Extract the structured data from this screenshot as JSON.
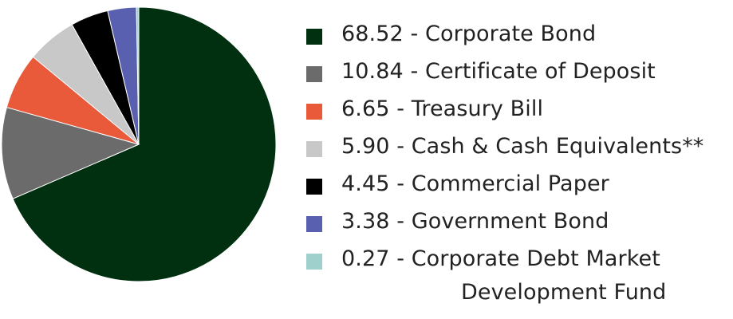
{
  "chart_data": {
    "type": "pie",
    "title": "",
    "legend_position": "right",
    "slices": [
      {
        "label": "68.52 - Corporate Bond",
        "value": 68.52,
        "color": "#003010"
      },
      {
        "label": "10.84 - Certificate of Deposit",
        "value": 10.84,
        "color": "#6b6b6b"
      },
      {
        "label": "6.65 - Treasury Bill",
        "value": 6.65,
        "color": "#e85a3a"
      },
      {
        "label": "5.90 - Cash & Cash Equivalents**",
        "value": 5.9,
        "color": "#c8c8c8"
      },
      {
        "label": "4.45 - Commercial Paper",
        "value": 4.45,
        "color": "#000000"
      },
      {
        "label": "3.38 - Government Bond",
        "value": 3.38,
        "color": "#5960b0"
      },
      {
        "label": "0.27 - Corporate Debt Market",
        "label_line2": "Development Fund",
        "value": 0.27,
        "color": "#9fd0cc"
      }
    ]
  }
}
